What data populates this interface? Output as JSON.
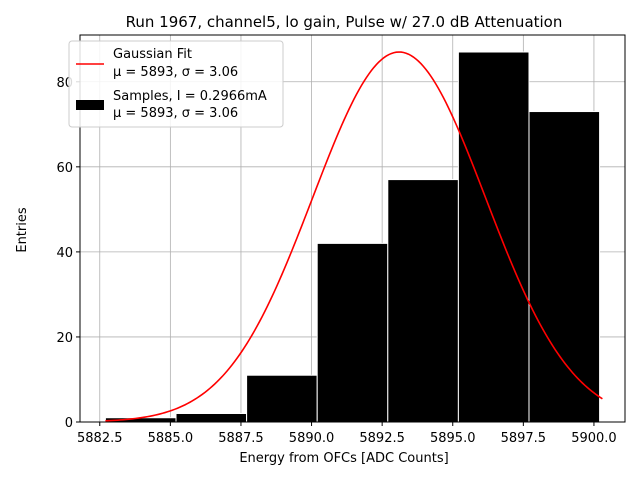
{
  "chart_data": {
    "type": "bar",
    "title": "Run 1967, channel5, lo gain, Pulse w/ 27.0 dB Attenuation",
    "xlabel": "Energy from OFCs [ADC Counts]",
    "ylabel": "Entries",
    "xlim": [
      5881.8,
      5901.1
    ],
    "ylim": [
      0,
      91
    ],
    "grid": true,
    "xticks": [
      5882.5,
      5885.0,
      5887.5,
      5890.0,
      5892.5,
      5895.0,
      5897.5,
      5900.0
    ],
    "xtick_labels": [
      "5882.5",
      "5885.0",
      "5887.5",
      "5890.0",
      "5892.5",
      "5895.0",
      "5897.5",
      "5900.0"
    ],
    "yticks": [
      0,
      20,
      40,
      60,
      80
    ],
    "ytick_labels": [
      "0",
      "20",
      "40",
      "60",
      "80"
    ],
    "bar_color": "#000000",
    "bar_edge_color": "#ffffff",
    "histogram": {
      "name": "Samples, I = 0.2966mA",
      "stats_label": "μ = 5893, σ = 3.06",
      "bins": [
        {
          "x0": 5882.7,
          "x1": 5885.2,
          "count": 1
        },
        {
          "x0": 5885.2,
          "x1": 5887.7,
          "count": 2
        },
        {
          "x0": 5887.7,
          "x1": 5890.2,
          "count": 11
        },
        {
          "x0": 5890.2,
          "x1": 5892.7,
          "count": 42
        },
        {
          "x0": 5892.7,
          "x1": 5895.2,
          "count": 57
        },
        {
          "x0": 5895.2,
          "x1": 5897.7,
          "count": 87
        },
        {
          "x0": 5897.7,
          "x1": 5900.2,
          "count": 73
        }
      ]
    },
    "fit": {
      "name": "Gaussian Fit",
      "stats_label": "μ = 5893, σ = 3.06",
      "color": "#ff0000",
      "mu": 5893.1,
      "sigma": 3.06,
      "amplitude": 87,
      "x_range": [
        5882.7,
        5900.3
      ]
    },
    "legend_position": "top-left"
  }
}
